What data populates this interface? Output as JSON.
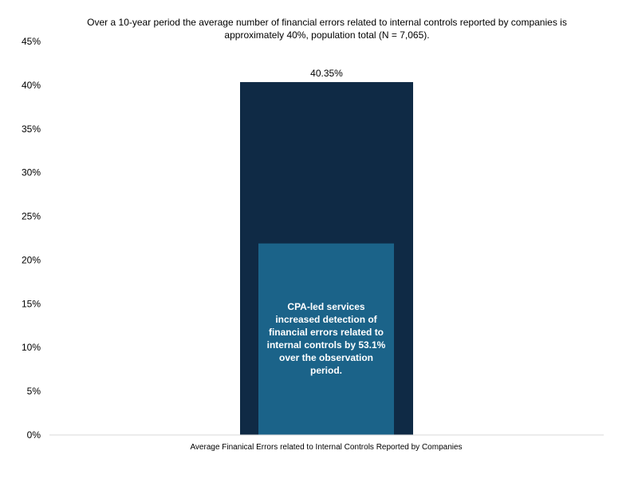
{
  "chart_data": {
    "type": "bar",
    "title": "Over a 10-year period the average number of financial errors related to internal controls reported by companies is approximately 40%, population total (N = 7,065).",
    "categories": [
      "Average Finanical Errors related to Internal Controls Reported by Companies"
    ],
    "series": [
      {
        "values": [
          40.35
        ],
        "color": "#0f2a45",
        "data_label": "40.35%"
      },
      {
        "values": [
          21.9
        ],
        "color": "#1b6389"
      }
    ],
    "ylim": [
      0,
      45
    ],
    "yticks": [
      0,
      5,
      10,
      15,
      20,
      25,
      30,
      35,
      40,
      45
    ],
    "ytick_labels": [
      "0%",
      "5%",
      "10%",
      "15%",
      "20%",
      "25%",
      "30%",
      "35%",
      "40%",
      "45%"
    ],
    "annotation": "CPA-led services increased detection of financial errors related to internal controls by 53.1% over the observation period.",
    "grid": false,
    "axis_color": "#d9d9d9"
  }
}
